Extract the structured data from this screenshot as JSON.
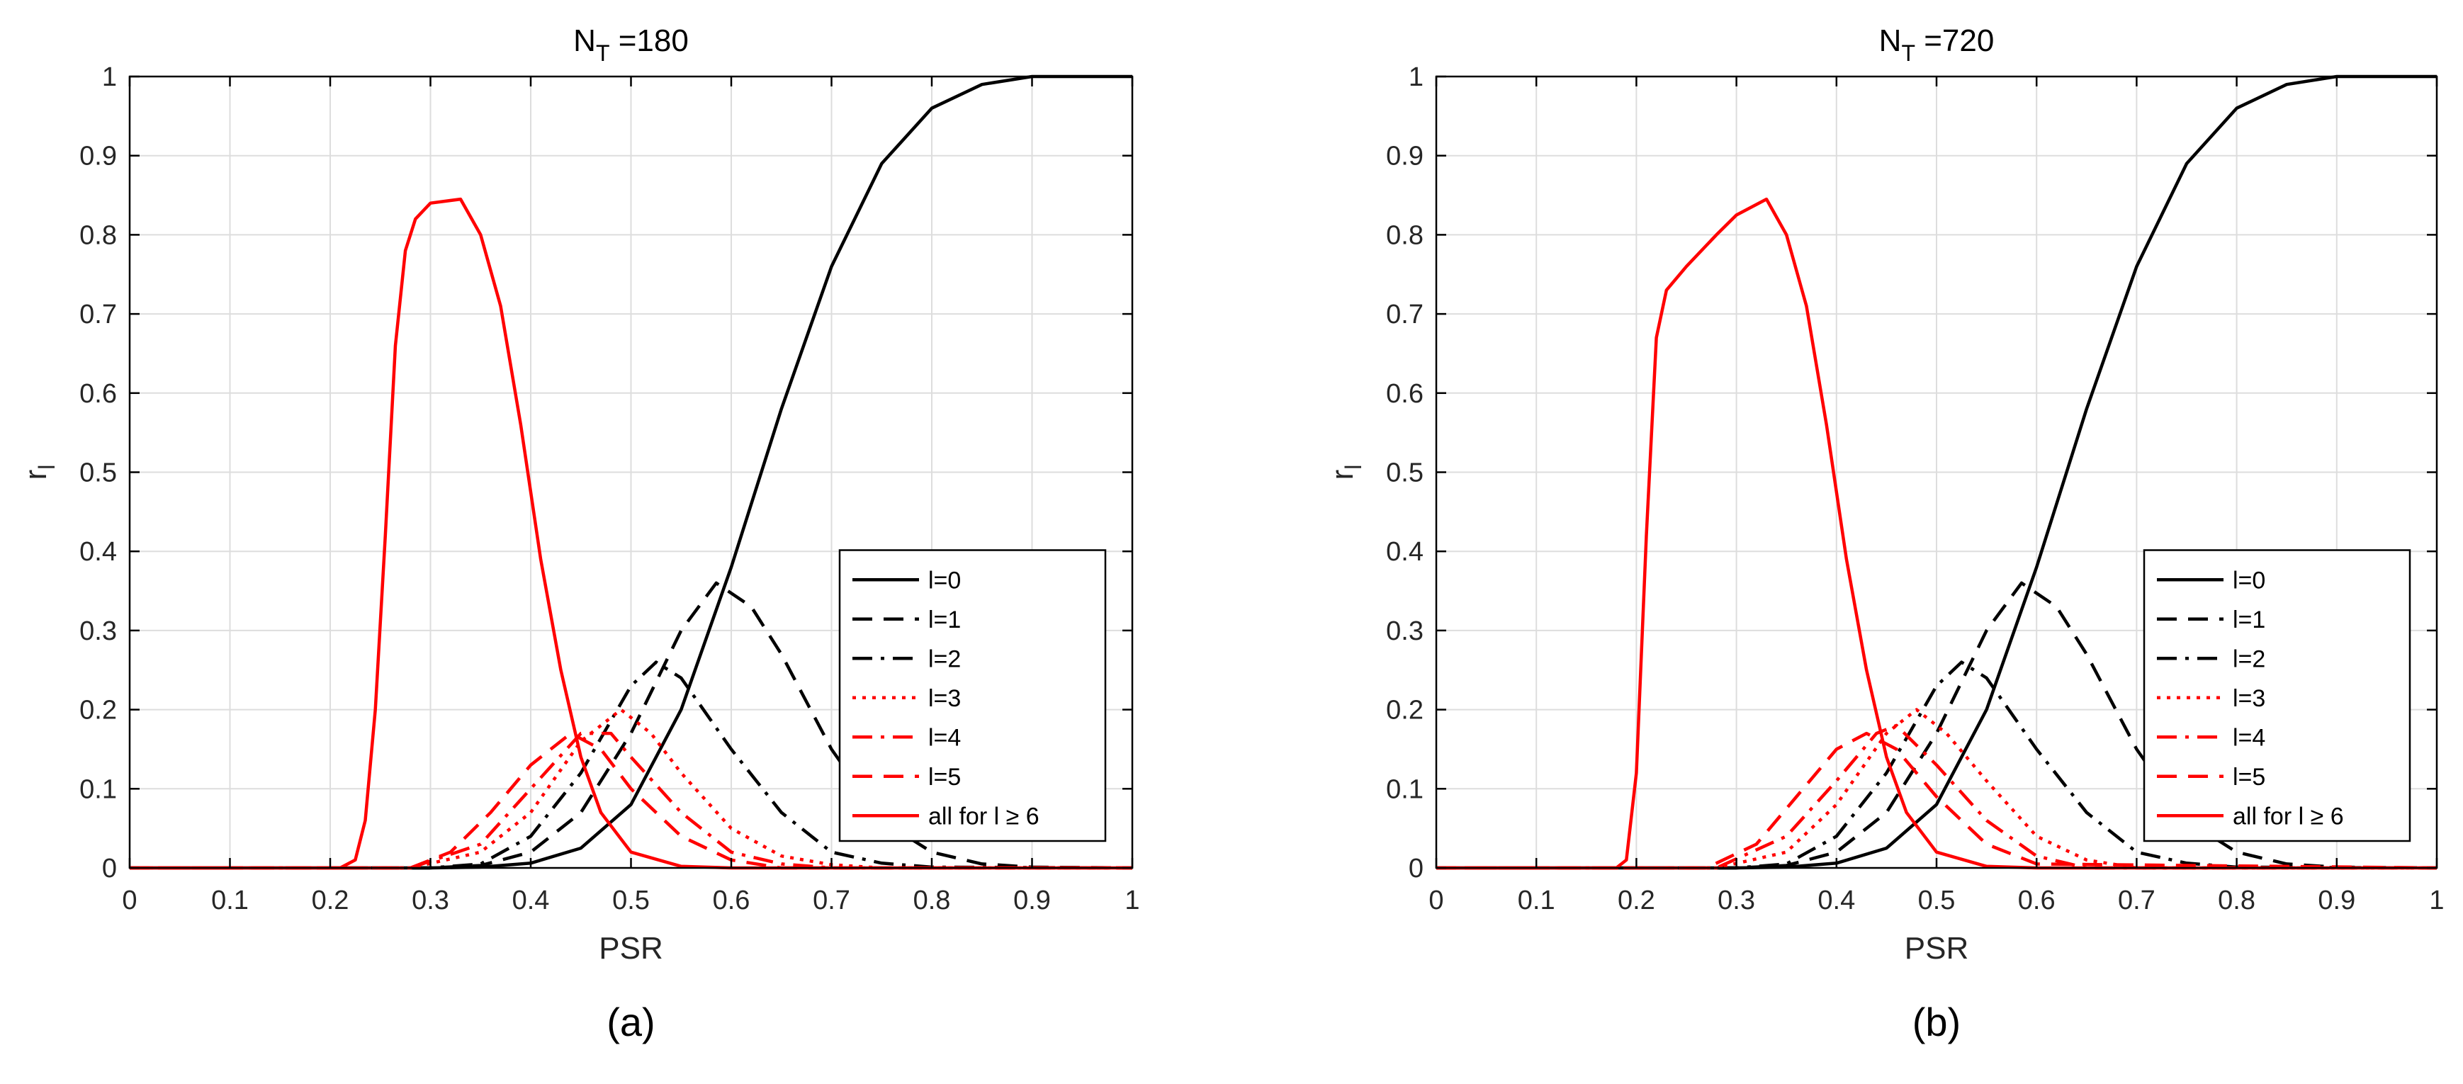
{
  "chart_data": [
    {
      "type": "line",
      "panel_label": "(a)",
      "title": "N_T =180",
      "title_main": "N",
      "title_sub": "T",
      "title_rest": " =180",
      "xlabel": "PSR",
      "ylabel_main": "r",
      "ylabel_sub": "l",
      "xlim": [
        0,
        1
      ],
      "ylim": [
        0,
        1
      ],
      "xticks": [
        "0",
        "0.1",
        "0.2",
        "0.3",
        "0.4",
        "0.5",
        "0.6",
        "0.7",
        "0.8",
        "0.9",
        "1"
      ],
      "yticks": [
        "0",
        "0.1",
        "0.2",
        "0.3",
        "0.4",
        "0.5",
        "0.6",
        "0.7",
        "0.8",
        "0.9",
        "1"
      ],
      "grid": true,
      "legend_position": "lower-right",
      "series": [
        {
          "name": "l=0",
          "color": "#000000",
          "dash": "solid",
          "x": [
            0,
            0.3,
            0.35,
            0.4,
            0.45,
            0.5,
            0.55,
            0.6,
            0.65,
            0.7,
            0.75,
            0.8,
            0.85,
            0.9,
            1.0
          ],
          "y": [
            0,
            0,
            0.001,
            0.006,
            0.025,
            0.08,
            0.2,
            0.38,
            0.58,
            0.76,
            0.89,
            0.96,
            0.99,
            1.0,
            1.0
          ]
        },
        {
          "name": "l=1",
          "color": "#000000",
          "dash": "dash",
          "x": [
            0,
            0.3,
            0.35,
            0.4,
            0.45,
            0.5,
            0.55,
            0.585,
            0.62,
            0.65,
            0.7,
            0.75,
            0.8,
            0.85,
            0.9,
            1.0
          ],
          "y": [
            0,
            0,
            0.003,
            0.02,
            0.07,
            0.17,
            0.3,
            0.36,
            0.33,
            0.27,
            0.15,
            0.06,
            0.02,
            0.005,
            0.001,
            0
          ]
        },
        {
          "name": "l=2",
          "color": "#000000",
          "dash": "dashdot",
          "x": [
            0,
            0.3,
            0.35,
            0.4,
            0.45,
            0.5,
            0.525,
            0.55,
            0.6,
            0.65,
            0.7,
            0.75,
            0.8,
            1.0
          ],
          "y": [
            0,
            0,
            0.005,
            0.04,
            0.12,
            0.23,
            0.26,
            0.24,
            0.15,
            0.07,
            0.02,
            0.006,
            0.001,
            0
          ]
        },
        {
          "name": "l=3",
          "color": "#ff0000",
          "dash": "dot",
          "x": [
            0,
            0.28,
            0.35,
            0.4,
            0.45,
            0.49,
            0.52,
            0.55,
            0.6,
            0.65,
            0.7,
            0.75,
            1.0
          ],
          "y": [
            0,
            0,
            0.02,
            0.07,
            0.16,
            0.2,
            0.17,
            0.12,
            0.05,
            0.015,
            0.004,
            0,
            0
          ]
        },
        {
          "name": "l=4",
          "color": "#ff0000",
          "dash": "dashdot",
          "x": [
            0,
            0.28,
            0.35,
            0.4,
            0.45,
            0.48,
            0.5,
            0.55,
            0.6,
            0.65,
            0.7,
            1.0
          ],
          "y": [
            0,
            0,
            0.03,
            0.1,
            0.17,
            0.17,
            0.14,
            0.07,
            0.02,
            0.005,
            0,
            0
          ]
        },
        {
          "name": "l=5",
          "color": "#ff0000",
          "dash": "dash",
          "x": [
            0,
            0.28,
            0.32,
            0.36,
            0.4,
            0.44,
            0.47,
            0.5,
            0.55,
            0.6,
            0.65,
            1.0
          ],
          "y": [
            0,
            0,
            0.02,
            0.07,
            0.13,
            0.17,
            0.15,
            0.1,
            0.04,
            0.01,
            0,
            0
          ]
        },
        {
          "name": "all for l ≥ 6",
          "color": "#ff0000",
          "dash": "solid",
          "x": [
            0,
            0.21,
            0.225,
            0.235,
            0.245,
            0.255,
            0.265,
            0.275,
            0.285,
            0.3,
            0.33,
            0.35,
            0.37,
            0.39,
            0.41,
            0.43,
            0.45,
            0.47,
            0.5,
            0.55,
            0.6,
            1.0
          ],
          "y": [
            0,
            0,
            0.01,
            0.06,
            0.2,
            0.42,
            0.66,
            0.78,
            0.82,
            0.84,
            0.845,
            0.8,
            0.71,
            0.56,
            0.39,
            0.25,
            0.14,
            0.07,
            0.02,
            0.002,
            0,
            0
          ]
        }
      ]
    },
    {
      "type": "line",
      "panel_label": "(b)",
      "title": "N_T =720",
      "title_main": "N",
      "title_sub": "T",
      "title_rest": " =720",
      "xlabel": "PSR",
      "ylabel_main": "r",
      "ylabel_sub": "l",
      "xlim": [
        0,
        1
      ],
      "ylim": [
        0,
        1
      ],
      "xticks": [
        "0",
        "0.1",
        "0.2",
        "0.3",
        "0.4",
        "0.5",
        "0.6",
        "0.7",
        "0.8",
        "0.9",
        "1"
      ],
      "yticks": [
        "0",
        "0.1",
        "0.2",
        "0.3",
        "0.4",
        "0.5",
        "0.6",
        "0.7",
        "0.8",
        "0.9",
        "1"
      ],
      "grid": true,
      "legend_position": "lower-right",
      "series": [
        {
          "name": "l=0",
          "color": "#000000",
          "dash": "solid",
          "x": [
            0,
            0.3,
            0.35,
            0.4,
            0.45,
            0.5,
            0.55,
            0.6,
            0.65,
            0.7,
            0.75,
            0.8,
            0.85,
            0.9,
            1.0
          ],
          "y": [
            0,
            0,
            0.001,
            0.006,
            0.025,
            0.08,
            0.2,
            0.38,
            0.58,
            0.76,
            0.89,
            0.96,
            0.99,
            1.0,
            1.0
          ]
        },
        {
          "name": "l=1",
          "color": "#000000",
          "dash": "dash",
          "x": [
            0,
            0.3,
            0.35,
            0.4,
            0.45,
            0.5,
            0.55,
            0.585,
            0.62,
            0.65,
            0.7,
            0.75,
            0.8,
            0.85,
            0.9,
            1.0
          ],
          "y": [
            0,
            0,
            0.003,
            0.02,
            0.07,
            0.17,
            0.3,
            0.36,
            0.33,
            0.27,
            0.15,
            0.06,
            0.02,
            0.005,
            0.001,
            0
          ]
        },
        {
          "name": "l=2",
          "color": "#000000",
          "dash": "dashdot",
          "x": [
            0,
            0.3,
            0.35,
            0.4,
            0.45,
            0.5,
            0.525,
            0.55,
            0.6,
            0.65,
            0.7,
            0.75,
            0.8,
            1.0
          ],
          "y": [
            0,
            0,
            0.005,
            0.04,
            0.12,
            0.23,
            0.26,
            0.24,
            0.15,
            0.07,
            0.02,
            0.006,
            0.001,
            0
          ]
        },
        {
          "name": "l=3",
          "color": "#ff0000",
          "dash": "dot",
          "x": [
            0,
            0.28,
            0.35,
            0.4,
            0.45,
            0.48,
            0.51,
            0.55,
            0.6,
            0.65,
            0.7,
            1.0
          ],
          "y": [
            0,
            0,
            0.02,
            0.08,
            0.17,
            0.2,
            0.17,
            0.11,
            0.04,
            0.01,
            0,
            0
          ]
        },
        {
          "name": "l=4",
          "color": "#ff0000",
          "dash": "dashdot",
          "x": [
            0,
            0.28,
            0.35,
            0.4,
            0.44,
            0.46,
            0.5,
            0.55,
            0.6,
            0.65,
            1.0
          ],
          "y": [
            0,
            0,
            0.04,
            0.11,
            0.17,
            0.18,
            0.13,
            0.06,
            0.015,
            0,
            0
          ]
        },
        {
          "name": "l=5",
          "color": "#ff0000",
          "dash": "dash",
          "x": [
            0,
            0.27,
            0.32,
            0.36,
            0.4,
            0.43,
            0.46,
            0.5,
            0.55,
            0.6,
            1.0
          ],
          "y": [
            0,
            0,
            0.03,
            0.09,
            0.15,
            0.17,
            0.15,
            0.09,
            0.03,
            0.005,
            0
          ]
        },
        {
          "name": "all for l ≥ 6",
          "color": "#ff0000",
          "dash": "solid",
          "x": [
            0,
            0.18,
            0.19,
            0.2,
            0.21,
            0.22,
            0.23,
            0.25,
            0.28,
            0.3,
            0.33,
            0.35,
            0.37,
            0.39,
            0.41,
            0.43,
            0.45,
            0.47,
            0.5,
            0.55,
            0.6,
            1.0
          ],
          "y": [
            0,
            0,
            0.01,
            0.12,
            0.42,
            0.67,
            0.73,
            0.76,
            0.8,
            0.825,
            0.845,
            0.8,
            0.71,
            0.56,
            0.39,
            0.25,
            0.14,
            0.07,
            0.02,
            0.002,
            0,
            0
          ]
        }
      ]
    }
  ]
}
